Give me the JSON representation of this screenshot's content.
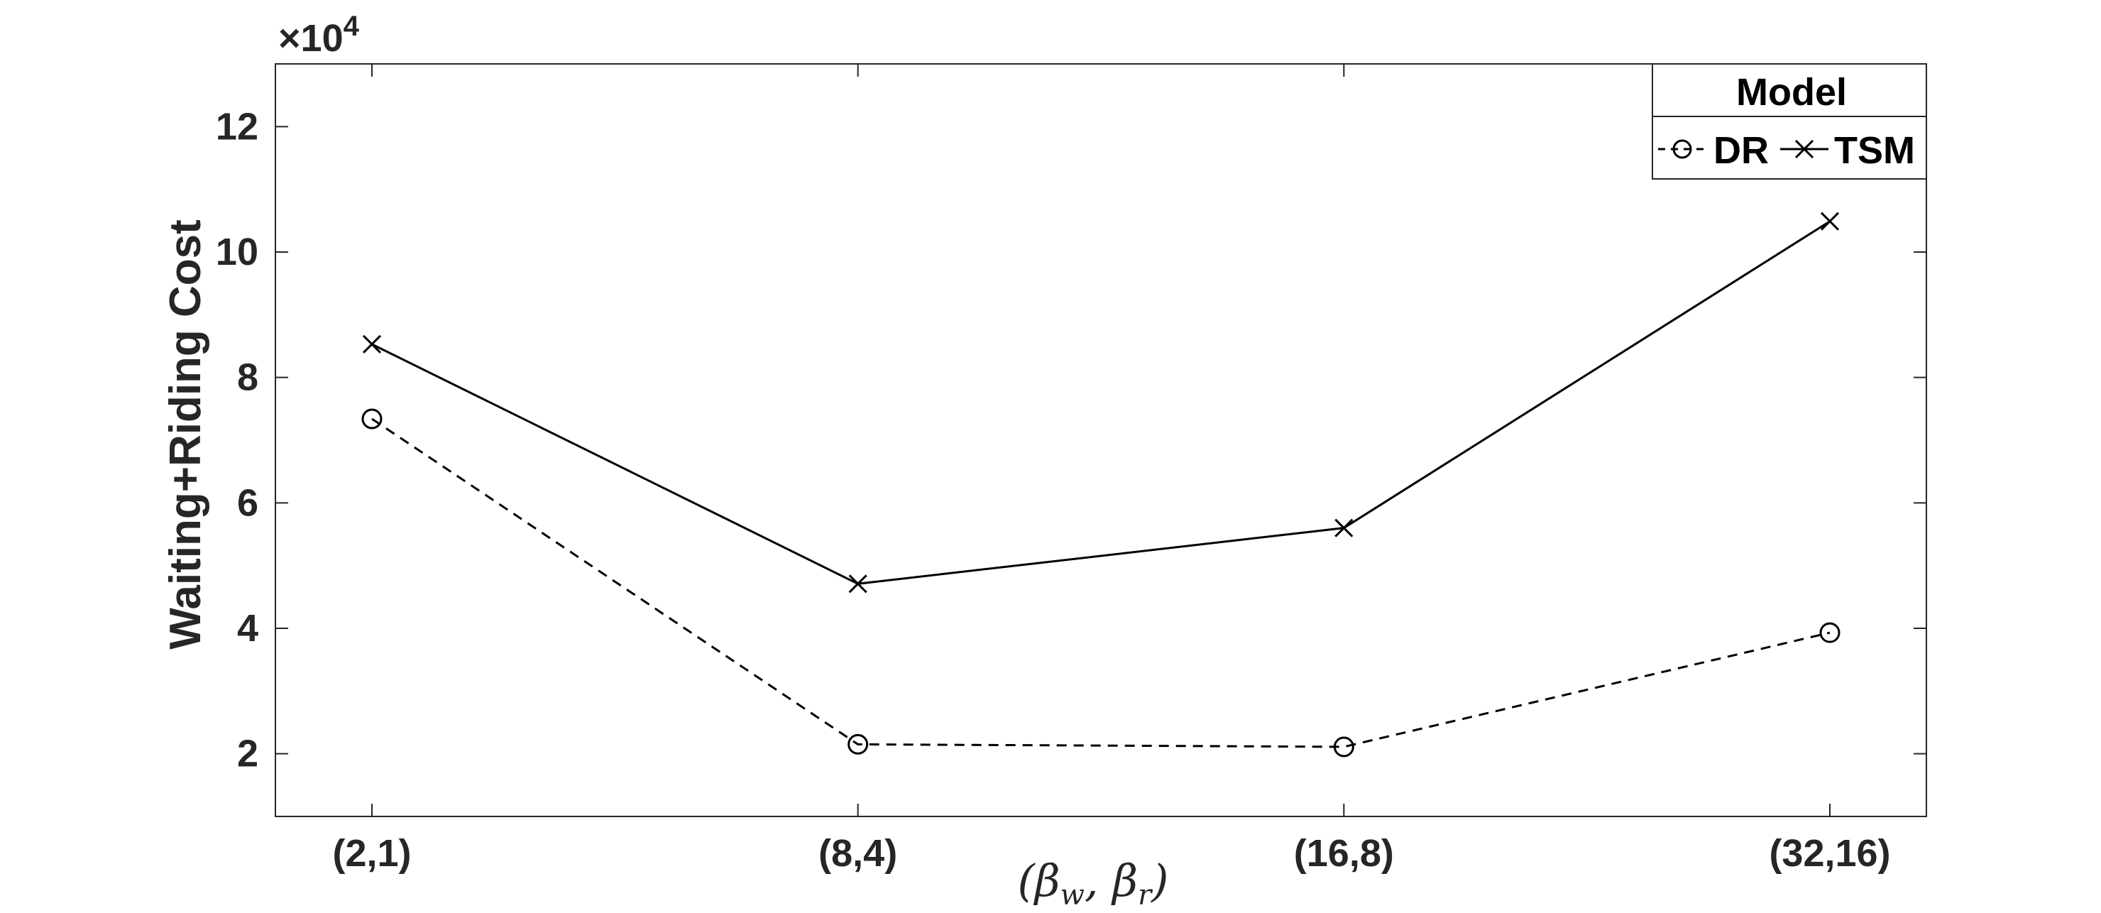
{
  "chart_data": {
    "type": "line",
    "categories": [
      "(2,1)",
      "(8,4)",
      "(16,8)",
      "(32,16)"
    ],
    "series": [
      {
        "name": "DR",
        "values": [
          73400,
          21500,
          21100,
          39300
        ],
        "line_style": "dashed",
        "marker": "circle",
        "color": "#000000"
      },
      {
        "name": "TSM",
        "values": [
          85300,
          47100,
          56000,
          104900
        ],
        "line_style": "solid",
        "marker": "x",
        "color": "#000000"
      }
    ],
    "ylabel": "Waiting+Riding Cost",
    "xlabel": "(βw, βr)",
    "ylim": [
      10000,
      130000
    ],
    "yticks": [
      20000,
      40000,
      60000,
      80000,
      100000,
      120000
    ],
    "ytick_labels": [
      "2",
      "4",
      "6",
      "8",
      "10",
      "12"
    ],
    "y_exponent_prefix": "×10",
    "y_exponent_power": "4",
    "legend_title": "Model",
    "legend_position": "top-right",
    "grid": false
  }
}
